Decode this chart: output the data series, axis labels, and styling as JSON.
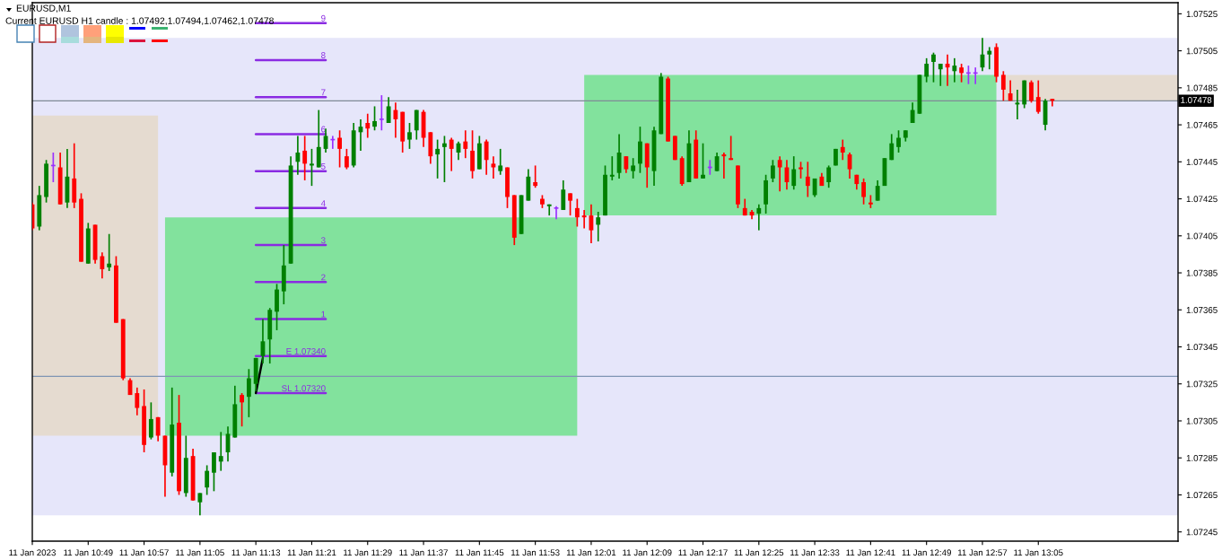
{
  "chart_data": {
    "type": "candlestick",
    "title": "EURUSD,M1",
    "subtitle": "Current EURUSD H1 candle : 1.07492,1.07494,1.07462,1.07478",
    "x": [
      "2023-01-11T10:41",
      "2023-01-11T10:42",
      "2023-01-11T10:43",
      "2023-01-11T10:44",
      "2023-01-11T10:45",
      "2023-01-11T10:46",
      "2023-01-11T10:47",
      "2023-01-11T10:48",
      "2023-01-11T10:49",
      "2023-01-11T10:50",
      "2023-01-11T10:51",
      "2023-01-11T10:52",
      "2023-01-11T10:53",
      "2023-01-11T10:54",
      "2023-01-11T10:55",
      "2023-01-11T10:56",
      "2023-01-11T10:57",
      "2023-01-11T10:58",
      "2023-01-11T10:59",
      "2023-01-11T11:00",
      "2023-01-11T11:01",
      "2023-01-11T11:02",
      "2023-01-11T11:03",
      "2023-01-11T11:04",
      "2023-01-11T11:05",
      "2023-01-11T11:06",
      "2023-01-11T11:07",
      "2023-01-11T11:08",
      "2023-01-11T11:09",
      "2023-01-11T11:10",
      "2023-01-11T11:11",
      "2023-01-11T11:12",
      "2023-01-11T11:13",
      "2023-01-11T11:14",
      "2023-01-11T11:15",
      "2023-01-11T11:16",
      "2023-01-11T11:17",
      "2023-01-11T11:18",
      "2023-01-11T11:19",
      "2023-01-11T11:20",
      "2023-01-11T11:21",
      "2023-01-11T11:22",
      "2023-01-11T11:23",
      "2023-01-11T11:24",
      "2023-01-11T11:25",
      "2023-01-11T11:26",
      "2023-01-11T11:27",
      "2023-01-11T11:28",
      "2023-01-11T11:29",
      "2023-01-11T11:30",
      "2023-01-11T11:31",
      "2023-01-11T11:32",
      "2023-01-11T11:33",
      "2023-01-11T11:34",
      "2023-01-11T11:35",
      "2023-01-11T11:36",
      "2023-01-11T11:37",
      "2023-01-11T11:38",
      "2023-01-11T11:39",
      "2023-01-11T11:40",
      "2023-01-11T11:41",
      "2023-01-11T11:42",
      "2023-01-11T11:43",
      "2023-01-11T11:44",
      "2023-01-11T11:45",
      "2023-01-11T11:46",
      "2023-01-11T11:47",
      "2023-01-11T11:48",
      "2023-01-11T11:49",
      "2023-01-11T11:50",
      "2023-01-11T11:51",
      "2023-01-11T11:52",
      "2023-01-11T11:53",
      "2023-01-11T11:54",
      "2023-01-11T11:55",
      "2023-01-11T11:56",
      "2023-01-11T11:57",
      "2023-01-11T11:58",
      "2023-01-11T11:59",
      "2023-01-11T12:00",
      "2023-01-11T12:01",
      "2023-01-11T12:02",
      "2023-01-11T12:03",
      "2023-01-11T12:04",
      "2023-01-11T12:05",
      "2023-01-11T12:06",
      "2023-01-11T12:07",
      "2023-01-11T12:08",
      "2023-01-11T12:09",
      "2023-01-11T12:10",
      "2023-01-11T12:11",
      "2023-01-11T12:12",
      "2023-01-11T12:13",
      "2023-01-11T12:14",
      "2023-01-11T12:15",
      "2023-01-11T12:16",
      "2023-01-11T12:17",
      "2023-01-11T12:18",
      "2023-01-11T12:19",
      "2023-01-11T12:20",
      "2023-01-11T12:21",
      "2023-01-11T12:22",
      "2023-01-11T12:23",
      "2023-01-11T12:24",
      "2023-01-11T12:25",
      "2023-01-11T12:26",
      "2023-01-11T12:27",
      "2023-01-11T12:28",
      "2023-01-11T12:29",
      "2023-01-11T12:30",
      "2023-01-11T12:31",
      "2023-01-11T12:32",
      "2023-01-11T12:33",
      "2023-01-11T12:34",
      "2023-01-11T12:35",
      "2023-01-11T12:36",
      "2023-01-11T12:37",
      "2023-01-11T12:38",
      "2023-01-11T12:39",
      "2023-01-11T12:40",
      "2023-01-11T12:41",
      "2023-01-11T12:42",
      "2023-01-11T12:43",
      "2023-01-11T12:44",
      "2023-01-11T12:45",
      "2023-01-11T12:46",
      "2023-01-11T12:47",
      "2023-01-11T12:48",
      "2023-01-11T12:49",
      "2023-01-11T12:50",
      "2023-01-11T12:51",
      "2023-01-11T12:52",
      "2023-01-11T12:53",
      "2023-01-11T12:54",
      "2023-01-11T12:55",
      "2023-01-11T12:56",
      "2023-01-11T12:57",
      "2023-01-11T12:58",
      "2023-01-11T12:59",
      "2023-01-11T13:00",
      "2023-01-11T13:01",
      "2023-01-11T13:02",
      "2023-01-11T13:03",
      "2023-01-11T13:04",
      "2023-01-11T13:05",
      "2023-01-11T13:06",
      "2023-01-11T13:07"
    ],
    "ohlc": [
      [
        1.07422,
        1.07423,
        1.07408,
        1.07409
      ],
      [
        1.0741,
        1.07432,
        1.07408,
        1.07427
      ],
      [
        1.07426,
        1.07446,
        1.07423,
        1.07444
      ],
      [
        1.07443,
        1.0745,
        1.07434,
        1.07443
      ],
      [
        1.07442,
        1.0745,
        1.07422,
        1.07422
      ],
      [
        1.07423,
        1.07452,
        1.0742,
        1.07437
      ],
      [
        1.07436,
        1.07455,
        1.0742,
        1.07423
      ],
      [
        1.07425,
        1.07428,
        1.07391,
        1.07391
      ],
      [
        1.0739,
        1.07412,
        1.0739,
        1.07409
      ],
      [
        1.07411,
        1.07411,
        1.0739,
        1.07392
      ],
      [
        1.07394,
        1.07396,
        1.07382,
        1.07387
      ],
      [
        1.07388,
        1.07406,
        1.07386,
        1.0739
      ],
      [
        1.07389,
        1.07394,
        1.07358,
        1.07358
      ],
      [
        1.0736,
        1.0736,
        1.07327,
        1.07328
      ],
      [
        1.07327,
        1.07328,
        1.07319,
        1.07319
      ],
      [
        1.0732,
        1.07323,
        1.07308,
        1.07312
      ],
      [
        1.07313,
        1.07322,
        1.07288,
        1.07292
      ],
      [
        1.07296,
        1.07315,
        1.07295,
        1.07306
      ],
      [
        1.07307,
        1.07307,
        1.07294,
        1.07297
      ],
      [
        1.07297,
        1.07297,
        1.07264,
        1.07281
      ],
      [
        1.07277,
        1.07323,
        1.07275,
        1.07303
      ],
      [
        1.07304,
        1.07319,
        1.07265,
        1.07267
      ],
      [
        1.07266,
        1.07297,
        1.07264,
        1.07285
      ],
      [
        1.07286,
        1.0729,
        1.07262,
        1.07262
      ],
      [
        1.07261,
        1.07266,
        1.07254,
        1.07266
      ],
      [
        1.07269,
        1.07281,
        1.07265,
        1.07278
      ],
      [
        1.07277,
        1.07288,
        1.07267,
        1.07288
      ],
      [
        1.07283,
        1.07299,
        1.07278,
        1.07286
      ],
      [
        1.07288,
        1.07302,
        1.07283,
        1.07298
      ],
      [
        1.07296,
        1.07324,
        1.07296,
        1.07314
      ],
      [
        1.07319,
        1.0732,
        1.07302,
        1.07315
      ],
      [
        1.07318,
        1.07333,
        1.07307,
        1.07328
      ],
      [
        1.07325,
        1.07339,
        1.07321,
        1.07339
      ],
      [
        1.0734,
        1.0736,
        1.07336,
        1.07348
      ],
      [
        1.07349,
        1.07366,
        1.07336,
        1.07365
      ],
      [
        1.07364,
        1.07379,
        1.07354,
        1.07376
      ],
      [
        1.07375,
        1.074,
        1.07368,
        1.07389
      ],
      [
        1.0739,
        1.07448,
        1.0739,
        1.07443
      ],
      [
        1.07445,
        1.07459,
        1.07438,
        1.0745
      ],
      [
        1.07451,
        1.07459,
        1.07435,
        1.07444
      ],
      [
        1.07443,
        1.07452,
        1.07432,
        1.07444
      ],
      [
        1.07442,
        1.07473,
        1.07442,
        1.07453
      ],
      [
        1.07452,
        1.07463,
        1.0745,
        1.07459
      ],
      [
        1.07457,
        1.07459,
        1.07452,
        1.07457
      ],
      [
        1.07458,
        1.07462,
        1.07442,
        1.07452
      ],
      [
        1.07448,
        1.07452,
        1.07441,
        1.07442
      ],
      [
        1.07443,
        1.07466,
        1.07442,
        1.07462
      ],
      [
        1.07461,
        1.07468,
        1.07451,
        1.07464
      ],
      [
        1.07466,
        1.07471,
        1.07458,
        1.07463
      ],
      [
        1.07464,
        1.07475,
        1.07462,
        1.07467
      ],
      [
        1.07468,
        1.07481,
        1.07462,
        1.07468
      ],
      [
        1.07466,
        1.0748,
        1.07466,
        1.07475
      ],
      [
        1.07473,
        1.07477,
        1.07458,
        1.07468
      ],
      [
        1.07472,
        1.07472,
        1.0745,
        1.07456
      ],
      [
        1.07457,
        1.07466,
        1.07452,
        1.07461
      ],
      [
        1.07462,
        1.07473,
        1.07457,
        1.07473
      ],
      [
        1.07472,
        1.07473,
        1.07453,
        1.07458
      ],
      [
        1.07461,
        1.07461,
        1.07444,
        1.07448
      ],
      [
        1.07449,
        1.07457,
        1.07436,
        1.07452
      ],
      [
        1.07453,
        1.07459,
        1.07434,
        1.07455
      ],
      [
        1.07457,
        1.07458,
        1.0744,
        1.07452
      ],
      [
        1.0745,
        1.07456,
        1.07446,
        1.07455
      ],
      [
        1.07456,
        1.07462,
        1.07447,
        1.07452
      ],
      [
        1.07451,
        1.07462,
        1.07436,
        1.0744
      ],
      [
        1.07441,
        1.07459,
        1.07441,
        1.07455
      ],
      [
        1.07456,
        1.07457,
        1.07438,
        1.07446
      ],
      [
        1.07444,
        1.07448,
        1.07436,
        1.07442
      ],
      [
        1.0744,
        1.07452,
        1.07438,
        1.07443
      ],
      [
        1.07442,
        1.07442,
        1.0742,
        1.07426
      ],
      [
        1.07427,
        1.07427,
        1.074,
        1.07404
      ],
      [
        1.07406,
        1.07427,
        1.07406,
        1.07427
      ],
      [
        1.07424,
        1.07441,
        1.07424,
        1.07437
      ],
      [
        1.07434,
        1.07443,
        1.07431,
        1.07432
      ],
      [
        1.07425,
        1.07427,
        1.0742,
        1.07422
      ],
      [
        1.07421,
        1.07422,
        1.07416,
        1.07422
      ],
      [
        1.0742,
        1.07421,
        1.07414,
        1.0742
      ],
      [
        1.07419,
        1.07435,
        1.07419,
        1.0743
      ],
      [
        1.07428,
        1.07428,
        1.07416,
        1.07424
      ],
      [
        1.0742,
        1.07425,
        1.0741,
        1.07415
      ],
      [
        1.07416,
        1.07419,
        1.07409,
        1.07415
      ],
      [
        1.07416,
        1.07422,
        1.07401,
        1.07408
      ],
      [
        1.07411,
        1.07418,
        1.07402,
        1.07415
      ],
      [
        1.07416,
        1.07443,
        1.07416,
        1.07438
      ],
      [
        1.07437,
        1.07448,
        1.07435,
        1.07438
      ],
      [
        1.07439,
        1.0746,
        1.07436,
        1.0745
      ],
      [
        1.07448,
        1.07448,
        1.07439,
        1.07441
      ],
      [
        1.0744,
        1.07447,
        1.07436,
        1.07443
      ],
      [
        1.07444,
        1.07464,
        1.07439,
        1.07456
      ],
      [
        1.07455,
        1.07455,
        1.07431,
        1.07442
      ],
      [
        1.0744,
        1.07464,
        1.07432,
        1.07462
      ],
      [
        1.0746,
        1.07493,
        1.0746,
        1.07491
      ],
      [
        1.0749,
        1.07491,
        1.07456,
        1.07456
      ],
      [
        1.07459,
        1.07459,
        1.07446,
        1.07446
      ],
      [
        1.07447,
        1.07448,
        1.07432,
        1.07433
      ],
      [
        1.07434,
        1.07462,
        1.07434,
        1.07455
      ],
      [
        1.07457,
        1.07462,
        1.07436,
        1.07436
      ],
      [
        1.07436,
        1.07455,
        1.07436,
        1.07438
      ],
      [
        1.07442,
        1.07446,
        1.07438,
        1.07442
      ],
      [
        1.0744,
        1.0745,
        1.0744,
        1.07448
      ],
      [
        1.07449,
        1.0745,
        1.07436,
        1.07448
      ],
      [
        1.07447,
        1.07459,
        1.07446,
        1.07446
      ],
      [
        1.07443,
        1.07443,
        1.0742,
        1.07422
      ],
      [
        1.0742,
        1.07425,
        1.07416,
        1.07416
      ],
      [
        1.07418,
        1.07419,
        1.07414,
        1.07416
      ],
      [
        1.07417,
        1.07422,
        1.07408,
        1.0742
      ],
      [
        1.07422,
        1.07438,
        1.07417,
        1.07435
      ],
      [
        1.07436,
        1.07446,
        1.07434,
        1.07443
      ],
      [
        1.07446,
        1.07448,
        1.07429,
        1.07442
      ],
      [
        1.07442,
        1.07446,
        1.0743,
        1.07434
      ],
      [
        1.07432,
        1.07448,
        1.0743,
        1.07441
      ],
      [
        1.07442,
        1.07445,
        1.07436,
        1.07441
      ],
      [
        1.07437,
        1.07445,
        1.07426,
        1.07432
      ],
      [
        1.07427,
        1.07436,
        1.07426,
        1.07436
      ],
      [
        1.07437,
        1.07439,
        1.07432,
        1.07432
      ],
      [
        1.07434,
        1.07443,
        1.07431,
        1.07442
      ],
      [
        1.07443,
        1.07452,
        1.07443,
        1.07452
      ],
      [
        1.07453,
        1.07457,
        1.07446,
        1.0745
      ],
      [
        1.07449,
        1.0745,
        1.07436,
        1.07441
      ],
      [
        1.07438,
        1.07438,
        1.0743,
        1.07433
      ],
      [
        1.07434,
        1.07436,
        1.07422,
        1.07426
      ],
      [
        1.07423,
        1.07427,
        1.0742,
        1.07422
      ],
      [
        1.07424,
        1.07435,
        1.07424,
        1.07432
      ],
      [
        1.07432,
        1.07447,
        1.07432,
        1.07447
      ],
      [
        1.07446,
        1.0746,
        1.07446,
        1.07455
      ],
      [
        1.07453,
        1.07462,
        1.0745,
        1.07458
      ],
      [
        1.07458,
        1.07462,
        1.07456,
        1.07462
      ],
      [
        1.07466,
        1.07477,
        1.07466,
        1.07473
      ],
      [
        1.07471,
        1.07492,
        1.07471,
        1.07492
      ],
      [
        1.07491,
        1.07501,
        1.07488,
        1.07498
      ],
      [
        1.07499,
        1.07504,
        1.07488,
        1.07503
      ],
      [
        1.07495,
        1.07498,
        1.07486,
        1.07498
      ],
      [
        1.07498,
        1.07503,
        1.07486,
        1.07496
      ],
      [
        1.07494,
        1.07501,
        1.07488,
        1.07497
      ],
      [
        1.07496,
        1.07498,
        1.07488,
        1.07493
      ],
      [
        1.07493,
        1.07497,
        1.07487,
        1.07493
      ],
      [
        1.07493,
        1.07496,
        1.07487,
        1.07493
      ],
      [
        1.07496,
        1.07512,
        1.07494,
        1.07503
      ],
      [
        1.07503,
        1.07507,
        1.07495,
        1.07505
      ],
      [
        1.07507,
        1.07509,
        1.07488,
        1.07491
      ],
      [
        1.07492,
        1.07494,
        1.07478,
        1.07484
      ],
      [
        1.07482,
        1.07489,
        1.07478,
        1.07478
      ],
      [
        1.07476,
        1.07484,
        1.07468,
        1.07477
      ],
      [
        1.07476,
        1.07489,
        1.07474,
        1.07489
      ],
      [
        1.07488,
        1.07489,
        1.07477,
        1.07478
      ],
      [
        1.0748,
        1.07489,
        1.07471,
        1.07472
      ],
      [
        1.07465,
        1.07479,
        1.07462,
        1.07478
      ],
      [
        1.07479,
        1.07479,
        1.07475,
        1.07478
      ]
    ],
    "colors": [
      "#ff0000",
      "#008000",
      "#008000",
      "#9b30ff",
      "#ff0000",
      "#008000",
      "#ff0000",
      "#ff0000",
      "#008000",
      "#ff0000",
      "#ff0000",
      "#008000",
      "#ff0000",
      "#ff0000",
      "#ff0000",
      "#ff0000",
      "#ff0000",
      "#008000",
      "#ff0000",
      "#ff0000",
      "#008000",
      "#ff0000",
      "#008000",
      "#ff0000",
      "#008000",
      "#008000",
      "#008000",
      "#008000",
      "#008000",
      "#008000",
      "#ff0000",
      "#008000",
      "#008000",
      "#008000",
      "#008000",
      "#008000",
      "#008000",
      "#008000",
      "#008000",
      "#ff0000",
      "#008000",
      "#008000",
      "#008000",
      "#9b30ff",
      "#ff0000",
      "#ff0000",
      "#008000",
      "#008000",
      "#ff0000",
      "#008000",
      "#9b30ff",
      "#008000",
      "#ff0000",
      "#ff0000",
      "#008000",
      "#008000",
      "#ff0000",
      "#ff0000",
      "#008000",
      "#008000",
      "#ff0000",
      "#008000",
      "#ff0000",
      "#ff0000",
      "#008000",
      "#ff0000",
      "#ff0000",
      "#008000",
      "#ff0000",
      "#ff0000",
      "#008000",
      "#008000",
      "#ff0000",
      "#ff0000",
      "#008000",
      "#9b30ff",
      "#008000",
      "#ff0000",
      "#ff0000",
      "#ff0000",
      "#ff0000",
      "#008000",
      "#008000",
      "#008000",
      "#008000",
      "#ff0000",
      "#008000",
      "#008000",
      "#ff0000",
      "#008000",
      "#008000",
      "#ff0000",
      "#ff0000",
      "#ff0000",
      "#008000",
      "#ff0000",
      "#008000",
      "#9b30ff",
      "#008000",
      "#ff0000",
      "#ff0000",
      "#ff0000",
      "#ff0000",
      "#ff0000",
      "#008000",
      "#008000",
      "#008000",
      "#ff0000",
      "#ff0000",
      "#008000",
      "#ff0000",
      "#ff0000",
      "#008000",
      "#ff0000",
      "#008000",
      "#008000",
      "#ff0000",
      "#ff0000",
      "#ff0000",
      "#ff0000",
      "#ff0000",
      "#008000",
      "#008000",
      "#008000",
      "#008000",
      "#008000",
      "#008000",
      "#008000",
      "#008000",
      "#008000",
      "#008000",
      "#ff0000",
      "#008000",
      "#ff0000",
      "#9b30ff",
      "#9b30ff",
      "#008000",
      "#008000",
      "#ff0000",
      "#ff0000",
      "#ff0000",
      "#008000",
      "#008000",
      "#ff0000",
      "#ff0000",
      "#008000",
      "#ff0000"
    ],
    "series": [
      {
        "type": "area",
        "color": "#e5dbd0",
        "x": [
          "2023-01-11T10:41",
          "2023-01-11T10:59"
        ],
        "values": [
          null,
          null
        ],
        "upper": [
          1.0747,
          1.0747
        ],
        "lower": [
          1.07297,
          1.07297
        ]
      },
      {
        "type": "area",
        "color": "#82e29d",
        "x": [
          "2023-01-11T11:00",
          "2023-01-11T11:59"
        ],
        "values": [
          null,
          null
        ],
        "upper": [
          1.07415,
          1.07415
        ],
        "lower": [
          1.07297,
          1.07297
        ]
      },
      {
        "type": "area",
        "color": "#82e29d",
        "x": [
          "2023-01-11T12:00",
          "2023-01-11T12:59"
        ],
        "values": [
          null,
          null
        ],
        "upper": [
          1.07492,
          1.07492
        ],
        "lower": [
          1.07416,
          1.07416
        ]
      },
      {
        "type": "area",
        "color": "#e5dbd0",
        "x": [
          "2023-01-11T13:00",
          "2023-01-11T13:25"
        ],
        "values": [
          null,
          null
        ],
        "upper": [
          1.07492,
          1.07492
        ],
        "lower": [
          1.07478,
          1.07478
        ]
      },
      {
        "type": "line",
        "name": "9",
        "color": "#8a2be2",
        "x": [
          "2023-01-11T11:13",
          "2023-01-11T11:23"
        ],
        "values": [
          1.0752,
          1.0752
        ]
      },
      {
        "type": "line",
        "name": "8",
        "color": "#8a2be2",
        "x": [
          "2023-01-11T11:13",
          "2023-01-11T11:23"
        ],
        "values": [
          1.075,
          1.075
        ]
      },
      {
        "type": "line",
        "name": "7",
        "color": "#8a2be2",
        "x": [
          "2023-01-11T11:13",
          "2023-01-11T11:23"
        ],
        "values": [
          1.0748,
          1.0748
        ]
      },
      {
        "type": "line",
        "name": "6",
        "color": "#8a2be2",
        "x": [
          "2023-01-11T11:13",
          "2023-01-11T11:23"
        ],
        "values": [
          1.0746,
          1.0746
        ]
      },
      {
        "type": "line",
        "name": "5",
        "color": "#8a2be2",
        "x": [
          "2023-01-11T11:13",
          "2023-01-11T11:23"
        ],
        "values": [
          1.0744,
          1.0744
        ]
      },
      {
        "type": "line",
        "name": "4",
        "color": "#8a2be2",
        "x": [
          "2023-01-11T11:13",
          "2023-01-11T11:23"
        ],
        "values": [
          1.0742,
          1.0742
        ]
      },
      {
        "type": "line",
        "name": "3",
        "color": "#8a2be2",
        "x": [
          "2023-01-11T11:13",
          "2023-01-11T11:23"
        ],
        "values": [
          1.074,
          1.074
        ]
      },
      {
        "type": "line",
        "name": "2",
        "color": "#8a2be2",
        "x": [
          "2023-01-11T11:13",
          "2023-01-11T11:23"
        ],
        "values": [
          1.0738,
          1.0738
        ]
      },
      {
        "type": "line",
        "name": "1",
        "color": "#8a2be2",
        "x": [
          "2023-01-11T11:13",
          "2023-01-11T11:23"
        ],
        "values": [
          1.0736,
          1.0736
        ]
      },
      {
        "type": "line",
        "name": "E 1.07340",
        "color": "#8a2be2",
        "x": [
          "2023-01-11T11:13",
          "2023-01-11T11:23"
        ],
        "values": [
          1.0734,
          1.0734
        ]
      },
      {
        "type": "line",
        "name": "SL 1.07320",
        "color": "#8a2be2",
        "x": [
          "2023-01-11T11:13",
          "2023-01-11T11:23"
        ],
        "values": [
          1.0732,
          1.0732
        ]
      },
      {
        "type": "line",
        "color": "#000000",
        "x": [
          "2023-01-11T11:13",
          "2023-01-11T11:14"
        ],
        "values": [
          1.0732,
          1.07339
        ]
      }
    ],
    "bands": [
      {
        "axis": "y",
        "from": 1.07254,
        "to": 1.07512,
        "color": "#e6e6fa"
      }
    ],
    "ref_lines": [
      {
        "axis": "y",
        "value": 1.07478,
        "label": "1.07478",
        "color": "#7f8a96"
      },
      {
        "axis": "y",
        "value": 1.07329,
        "color": "#7f95b4"
      }
    ],
    "xlim": [
      "2023-01-11T10:41",
      "2023-01-11T13:25"
    ],
    "xticks": [
      {
        "value": "2023-01-11T10:41",
        "label": "11 Jan 2023"
      },
      {
        "value": "2023-01-11T10:49",
        "label": "11 Jan 10:49"
      },
      {
        "value": "2023-01-11T10:57",
        "label": "11 Jan 10:57"
      },
      {
        "value": "2023-01-11T11:05",
        "label": "11 Jan 11:05"
      },
      {
        "value": "2023-01-11T11:13",
        "label": "11 Jan 11:13"
      },
      {
        "value": "2023-01-11T11:21",
        "label": "11 Jan 11:21"
      },
      {
        "value": "2023-01-11T11:29",
        "label": "11 Jan 11:29"
      },
      {
        "value": "2023-01-11T11:37",
        "label": "11 Jan 11:37"
      },
      {
        "value": "2023-01-11T11:45",
        "label": "11 Jan 11:45"
      },
      {
        "value": "2023-01-11T11:53",
        "label": "11 Jan 11:53"
      },
      {
        "value": "2023-01-11T12:01",
        "label": "11 Jan 12:01"
      },
      {
        "value": "2023-01-11T12:09",
        "label": "11 Jan 12:09"
      },
      {
        "value": "2023-01-11T12:17",
        "label": "11 Jan 12:17"
      },
      {
        "value": "2023-01-11T12:25",
        "label": "11 Jan 12:25"
      },
      {
        "value": "2023-01-11T12:33",
        "label": "11 Jan 12:33"
      },
      {
        "value": "2023-01-11T12:41",
        "label": "11 Jan 12:41"
      },
      {
        "value": "2023-01-11T12:49",
        "label": "11 Jan 12:49"
      },
      {
        "value": "2023-01-11T12:57",
        "label": "11 Jan 12:57"
      },
      {
        "value": "2023-01-11T13:05",
        "label": "11 Jan 13:05"
      }
    ],
    "ylim": [
      1.0724,
      1.07531
    ],
    "yticks": [
      1.07525,
      1.07505,
      1.07485,
      1.07465,
      1.07445,
      1.07425,
      1.07405,
      1.07385,
      1.07365,
      1.07345,
      1.07325,
      1.07305,
      1.07285,
      1.07265,
      1.07245
    ]
  }
}
